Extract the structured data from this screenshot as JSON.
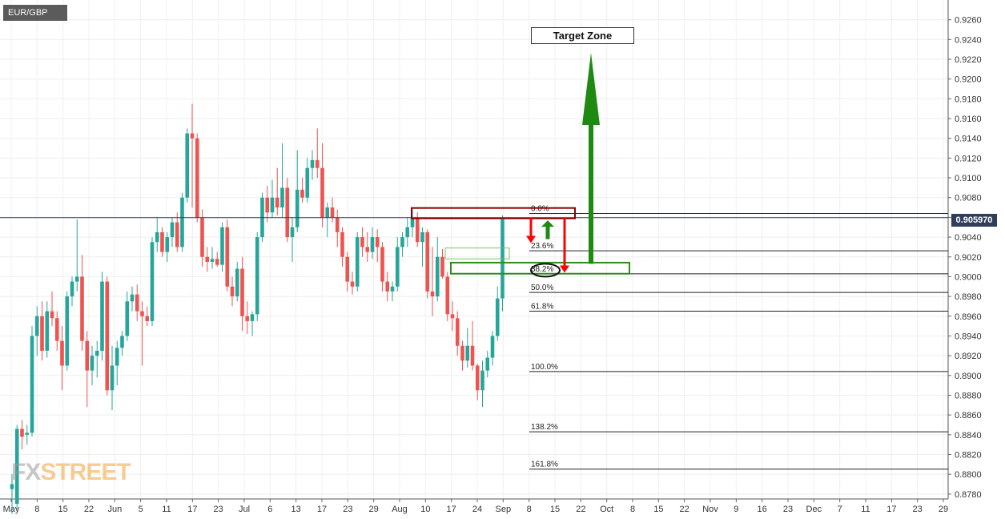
{
  "symbol": "EUR/GBP",
  "current_price": "0.905970",
  "annotation": "Target Zone",
  "brand": {
    "fx": "FX",
    "street": "STREET"
  },
  "colors": {
    "bull": "#26a69a",
    "bear": "#ef5350",
    "price_line": "#2f3e5c",
    "resistance": "#8b0000",
    "support": "#2e8b1e",
    "arrow_up": "#1f8a12",
    "arrow_down": "#ff0000"
  },
  "chart_data": {
    "type": "candlestick",
    "title": "EUR/GBP",
    "timeframe": "daily",
    "ylim": [
      0.8775,
      0.928
    ],
    "y_ticks": [
      "0.9260",
      "0.9240",
      "0.9220",
      "0.9200",
      "0.9180",
      "0.9160",
      "0.9140",
      "0.9120",
      "0.9100",
      "0.9080",
      "0.9060",
      "0.9040",
      "0.9020",
      "0.9000",
      "0.8980",
      "0.8960",
      "0.8940",
      "0.8920",
      "0.8900",
      "0.8880",
      "0.8860",
      "0.8840",
      "0.8820",
      "0.8800",
      "0.8780"
    ],
    "x_ticks": [
      "May",
      "8",
      "15",
      "22",
      "Jun",
      "5",
      "11",
      "17",
      "23",
      "Jul",
      "6",
      "13",
      "17",
      "23",
      "29",
      "Aug",
      "10",
      "17",
      "24",
      "Sep",
      "8",
      "15",
      "22",
      "Oct",
      "8",
      "15",
      "22",
      "Nov",
      "9",
      "16",
      "23",
      "Dec",
      "7",
      "11",
      "17",
      "23",
      "29"
    ],
    "current_price": 0.90597,
    "candles": [
      {
        "o": 0.8785,
        "h": 0.88,
        "l": 0.876,
        "c": 0.879
      },
      {
        "o": 0.877,
        "h": 0.885,
        "l": 0.8765,
        "c": 0.8846
      },
      {
        "o": 0.8846,
        "h": 0.8855,
        "l": 0.8825,
        "c": 0.8838
      },
      {
        "o": 0.884,
        "h": 0.885,
        "l": 0.883,
        "c": 0.8842
      },
      {
        "o": 0.8842,
        "h": 0.895,
        "l": 0.8838,
        "c": 0.894
      },
      {
        "o": 0.894,
        "h": 0.897,
        "l": 0.892,
        "c": 0.896
      },
      {
        "o": 0.896,
        "h": 0.8975,
        "l": 0.8915,
        "c": 0.8925
      },
      {
        "o": 0.8925,
        "h": 0.8975,
        "l": 0.8918,
        "c": 0.8965
      },
      {
        "o": 0.8965,
        "h": 0.8985,
        "l": 0.895,
        "c": 0.8958
      },
      {
        "o": 0.8958,
        "h": 0.8965,
        "l": 0.8925,
        "c": 0.8935
      },
      {
        "o": 0.8935,
        "h": 0.895,
        "l": 0.8885,
        "c": 0.891
      },
      {
        "o": 0.891,
        "h": 0.8985,
        "l": 0.8905,
        "c": 0.898
      },
      {
        "o": 0.898,
        "h": 0.9,
        "l": 0.897,
        "c": 0.8995
      },
      {
        "o": 0.8995,
        "h": 0.9058,
        "l": 0.8985,
        "c": 0.9
      },
      {
        "o": 0.9,
        "h": 0.9022,
        "l": 0.8925,
        "c": 0.8935
      },
      {
        "o": 0.8935,
        "h": 0.8945,
        "l": 0.8868,
        "c": 0.8905
      },
      {
        "o": 0.8905,
        "h": 0.893,
        "l": 0.889,
        "c": 0.892
      },
      {
        "o": 0.892,
        "h": 0.8935,
        "l": 0.8898,
        "c": 0.8925
      },
      {
        "o": 0.8925,
        "h": 0.9005,
        "l": 0.8915,
        "c": 0.8995
      },
      {
        "o": 0.8995,
        "h": 0.9,
        "l": 0.888,
        "c": 0.8885
      },
      {
        "o": 0.8885,
        "h": 0.893,
        "l": 0.8865,
        "c": 0.891
      },
      {
        "o": 0.891,
        "h": 0.8935,
        "l": 0.889,
        "c": 0.8928
      },
      {
        "o": 0.8928,
        "h": 0.8945,
        "l": 0.892,
        "c": 0.894
      },
      {
        "o": 0.894,
        "h": 0.8985,
        "l": 0.8935,
        "c": 0.8975
      },
      {
        "o": 0.8975,
        "h": 0.899,
        "l": 0.8965,
        "c": 0.8982
      },
      {
        "o": 0.8982,
        "h": 0.8992,
        "l": 0.8955,
        "c": 0.8965
      },
      {
        "o": 0.8965,
        "h": 0.8975,
        "l": 0.891,
        "c": 0.896
      },
      {
        "o": 0.896,
        "h": 0.897,
        "l": 0.895,
        "c": 0.8955
      },
      {
        "o": 0.8955,
        "h": 0.904,
        "l": 0.895,
        "c": 0.9035
      },
      {
        "o": 0.9035,
        "h": 0.906,
        "l": 0.9025,
        "c": 0.9045
      },
      {
        "o": 0.9045,
        "h": 0.905,
        "l": 0.902,
        "c": 0.9025
      },
      {
        "o": 0.9025,
        "h": 0.9045,
        "l": 0.9015,
        "c": 0.904
      },
      {
        "o": 0.904,
        "h": 0.906,
        "l": 0.903,
        "c": 0.9055
      },
      {
        "o": 0.9055,
        "h": 0.9065,
        "l": 0.9025,
        "c": 0.903
      },
      {
        "o": 0.903,
        "h": 0.9085,
        "l": 0.9025,
        "c": 0.908
      },
      {
        "o": 0.908,
        "h": 0.915,
        "l": 0.9075,
        "c": 0.9145
      },
      {
        "o": 0.9145,
        "h": 0.9175,
        "l": 0.907,
        "c": 0.914
      },
      {
        "o": 0.914,
        "h": 0.9145,
        "l": 0.9055,
        "c": 0.906
      },
      {
        "o": 0.906,
        "h": 0.9068,
        "l": 0.901,
        "c": 0.902
      },
      {
        "o": 0.902,
        "h": 0.903,
        "l": 0.9005,
        "c": 0.9015
      },
      {
        "o": 0.9015,
        "h": 0.903,
        "l": 0.9008,
        "c": 0.9018
      },
      {
        "o": 0.9018,
        "h": 0.9025,
        "l": 0.901,
        "c": 0.9012
      },
      {
        "o": 0.9012,
        "h": 0.9055,
        "l": 0.9005,
        "c": 0.905
      },
      {
        "o": 0.905,
        "h": 0.9058,
        "l": 0.8985,
        "c": 0.899
      },
      {
        "o": 0.899,
        "h": 0.9,
        "l": 0.897,
        "c": 0.898
      },
      {
        "o": 0.898,
        "h": 0.9015,
        "l": 0.8975,
        "c": 0.9008
      },
      {
        "o": 0.9008,
        "h": 0.902,
        "l": 0.8945,
        "c": 0.896
      },
      {
        "o": 0.896,
        "h": 0.8975,
        "l": 0.8942,
        "c": 0.8955
      },
      {
        "o": 0.8955,
        "h": 0.8965,
        "l": 0.894,
        "c": 0.8962
      },
      {
        "o": 0.8962,
        "h": 0.9045,
        "l": 0.8955,
        "c": 0.904
      },
      {
        "o": 0.904,
        "h": 0.9085,
        "l": 0.9035,
        "c": 0.908
      },
      {
        "o": 0.908,
        "h": 0.9092,
        "l": 0.9055,
        "c": 0.9065
      },
      {
        "o": 0.9065,
        "h": 0.9098,
        "l": 0.906,
        "c": 0.908
      },
      {
        "o": 0.908,
        "h": 0.911,
        "l": 0.9062,
        "c": 0.907
      },
      {
        "o": 0.907,
        "h": 0.9135,
        "l": 0.906,
        "c": 0.909
      },
      {
        "o": 0.909,
        "h": 0.91,
        "l": 0.9035,
        "c": 0.904
      },
      {
        "o": 0.904,
        "h": 0.906,
        "l": 0.9015,
        "c": 0.905
      },
      {
        "o": 0.905,
        "h": 0.9128,
        "l": 0.9045,
        "c": 0.9088
      },
      {
        "o": 0.9088,
        "h": 0.91,
        "l": 0.9075,
        "c": 0.908
      },
      {
        "o": 0.908,
        "h": 0.912,
        "l": 0.9075,
        "c": 0.911
      },
      {
        "o": 0.911,
        "h": 0.9128,
        "l": 0.9098,
        "c": 0.9118
      },
      {
        "o": 0.9118,
        "h": 0.915,
        "l": 0.91,
        "c": 0.911
      },
      {
        "o": 0.911,
        "h": 0.9135,
        "l": 0.905,
        "c": 0.906
      },
      {
        "o": 0.906,
        "h": 0.9075,
        "l": 0.904,
        "c": 0.907
      },
      {
        "o": 0.907,
        "h": 0.908,
        "l": 0.9055,
        "c": 0.906
      },
      {
        "o": 0.906,
        "h": 0.9068,
        "l": 0.903,
        "c": 0.9045
      },
      {
        "o": 0.9045,
        "h": 0.905,
        "l": 0.901,
        "c": 0.902
      },
      {
        "o": 0.902,
        "h": 0.9025,
        "l": 0.8985,
        "c": 0.8995
      },
      {
        "o": 0.8995,
        "h": 0.9005,
        "l": 0.8982,
        "c": 0.899
      },
      {
        "o": 0.899,
        "h": 0.9045,
        "l": 0.8985,
        "c": 0.904
      },
      {
        "o": 0.904,
        "h": 0.905,
        "l": 0.902,
        "c": 0.903
      },
      {
        "o": 0.903,
        "h": 0.9045,
        "l": 0.9015,
        "c": 0.9025
      },
      {
        "o": 0.9025,
        "h": 0.905,
        "l": 0.9018,
        "c": 0.904
      },
      {
        "o": 0.904,
        "h": 0.9048,
        "l": 0.9015,
        "c": 0.903
      },
      {
        "o": 0.903,
        "h": 0.9035,
        "l": 0.8985,
        "c": 0.8995
      },
      {
        "o": 0.8995,
        "h": 0.9005,
        "l": 0.8975,
        "c": 0.8985
      },
      {
        "o": 0.8985,
        "h": 0.8995,
        "l": 0.8975,
        "c": 0.899
      },
      {
        "o": 0.899,
        "h": 0.904,
        "l": 0.8985,
        "c": 0.903
      },
      {
        "o": 0.903,
        "h": 0.9045,
        "l": 0.902,
        "c": 0.904
      },
      {
        "o": 0.904,
        "h": 0.906,
        "l": 0.903,
        "c": 0.905
      },
      {
        "o": 0.905,
        "h": 0.9068,
        "l": 0.904,
        "c": 0.906
      },
      {
        "o": 0.906,
        "h": 0.9065,
        "l": 0.903,
        "c": 0.9035
      },
      {
        "o": 0.9035,
        "h": 0.905,
        "l": 0.901,
        "c": 0.9045
      },
      {
        "o": 0.9045,
        "h": 0.9048,
        "l": 0.8978,
        "c": 0.8985
      },
      {
        "o": 0.8985,
        "h": 0.903,
        "l": 0.896,
        "c": 0.898
      },
      {
        "o": 0.898,
        "h": 0.904,
        "l": 0.8975,
        "c": 0.902
      },
      {
        "o": 0.902,
        "h": 0.9028,
        "l": 0.8998,
        "c": 0.9
      },
      {
        "o": 0.9,
        "h": 0.9005,
        "l": 0.8955,
        "c": 0.8962
      },
      {
        "o": 0.8962,
        "h": 0.8975,
        "l": 0.8945,
        "c": 0.8958
      },
      {
        "o": 0.8958,
        "h": 0.8965,
        "l": 0.892,
        "c": 0.893
      },
      {
        "o": 0.893,
        "h": 0.8935,
        "l": 0.8905,
        "c": 0.8915
      },
      {
        "o": 0.8915,
        "h": 0.8948,
        "l": 0.8908,
        "c": 0.893
      },
      {
        "o": 0.893,
        "h": 0.8955,
        "l": 0.8905,
        "c": 0.891
      },
      {
        "o": 0.891,
        "h": 0.8912,
        "l": 0.8875,
        "c": 0.8885
      },
      {
        "o": 0.8885,
        "h": 0.8915,
        "l": 0.8868,
        "c": 0.8905
      },
      {
        "o": 0.8905,
        "h": 0.8925,
        "l": 0.8898,
        "c": 0.8918
      },
      {
        "o": 0.8918,
        "h": 0.8945,
        "l": 0.891,
        "c": 0.894
      },
      {
        "o": 0.894,
        "h": 0.899,
        "l": 0.8935,
        "c": 0.8978
      },
      {
        "o": 0.8978,
        "h": 0.9062,
        "l": 0.8965,
        "c": 0.9058
      }
    ]
  },
  "fibonacci": [
    {
      "label": "0.0%",
      "price": 0.9064
    },
    {
      "label": "23.6%",
      "price": 0.90262
    },
    {
      "label": "38.2%",
      "price": 0.90029
    },
    {
      "label": "50.0%",
      "price": 0.8984
    },
    {
      "label": "61.8%",
      "price": 0.89651
    },
    {
      "label": "100.0%",
      "price": 0.8904
    },
    {
      "label": "138.2%",
      "price": 0.8843
    },
    {
      "label": "161.8%",
      "price": 0.88052
    }
  ]
}
